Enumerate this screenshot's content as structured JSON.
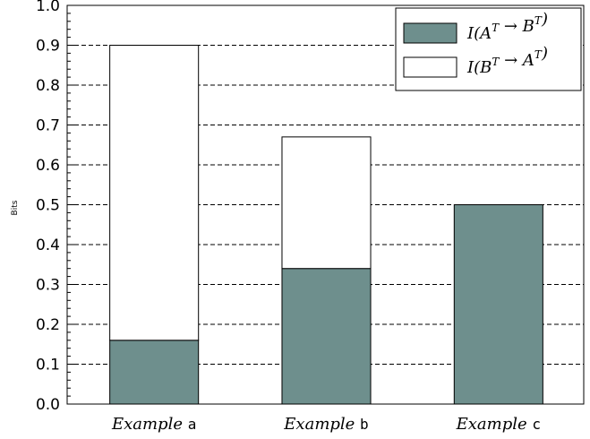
{
  "chart_data": {
    "type": "bar",
    "stacked": true,
    "categories": [
      {
        "italic": "Example",
        "suffix": "a"
      },
      {
        "italic": "Example",
        "suffix": "b"
      },
      {
        "italic": "Example",
        "suffix": "c"
      }
    ],
    "series": [
      {
        "name": "I(A^T → B^T)",
        "color": "#6e8f8d",
        "values": [
          0.16,
          0.34,
          0.5
        ]
      },
      {
        "name": "I(B^T → A^T)",
        "color": "#ffffff",
        "values": [
          0.74,
          0.33,
          0.0
        ]
      }
    ],
    "legend": {
      "placement": "top-right",
      "entries": [
        {
          "base": "I(A",
          "sup1": "T",
          "arrow": " → B",
          "sup2": "T",
          "close": ")"
        },
        {
          "base": "I(B",
          "sup1": "T",
          "arrow": " → A",
          "sup2": "T",
          "close": ")"
        }
      ]
    },
    "ylabel": "Bits",
    "ylim": [
      0,
      1.0
    ],
    "yticks": [
      "0.0",
      "0.1",
      "0.2",
      "0.3",
      "0.4",
      "0.5",
      "0.6",
      "0.7",
      "0.8",
      "0.9",
      "1.0"
    ],
    "grid": "horizontal-dashed"
  }
}
